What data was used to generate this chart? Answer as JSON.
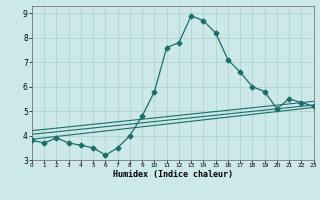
{
  "title": "",
  "xlabel": "Humidex (Indice chaleur)",
  "xlim": [
    0,
    23
  ],
  "ylim": [
    3,
    9.3
  ],
  "yticks": [
    3,
    4,
    5,
    6,
    7,
    8,
    9
  ],
  "xticks": [
    0,
    1,
    2,
    3,
    4,
    5,
    6,
    7,
    8,
    9,
    10,
    11,
    12,
    13,
    14,
    15,
    16,
    17,
    18,
    19,
    20,
    21,
    22,
    23
  ],
  "bg_color": "#cde8e8",
  "grid_color": "#aacfcf",
  "line_color": "#1a6e6a",
  "main_line": {
    "x": [
      0,
      1,
      2,
      3,
      4,
      5,
      6,
      7,
      8,
      9,
      10,
      11,
      12,
      13,
      14,
      15,
      16,
      17,
      18,
      19,
      20,
      21,
      22,
      23
    ],
    "y": [
      3.8,
      3.7,
      3.9,
      3.7,
      3.6,
      3.5,
      3.2,
      3.5,
      4.0,
      4.8,
      5.8,
      7.6,
      7.8,
      8.9,
      8.7,
      8.2,
      7.1,
      6.6,
      6.0,
      5.8,
      5.1,
      5.5,
      5.35,
      5.2
    ]
  },
  "extra_lines": [
    {
      "x": [
        0,
        23
      ],
      "y": [
        3.85,
        5.15
      ]
    },
    {
      "x": [
        0,
        23
      ],
      "y": [
        4.05,
        5.25
      ]
    },
    {
      "x": [
        0,
        23
      ],
      "y": [
        4.2,
        5.4
      ]
    }
  ]
}
